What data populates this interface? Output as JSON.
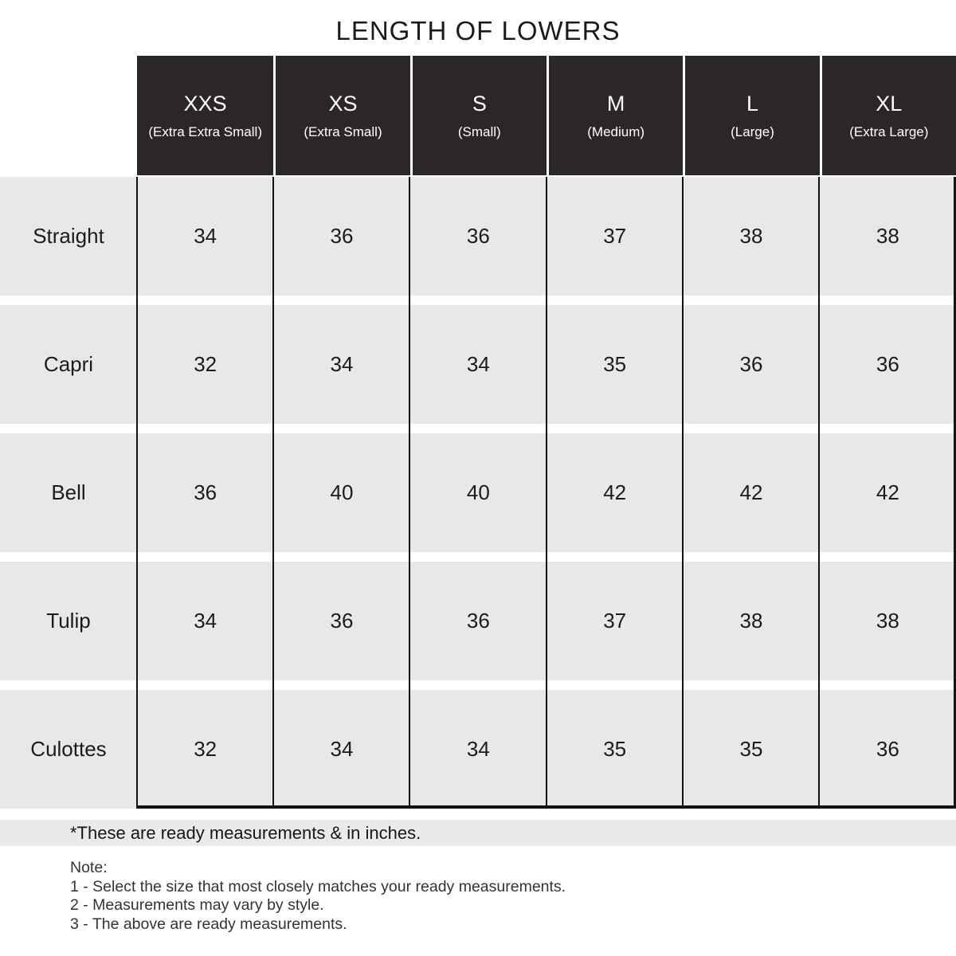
{
  "title": "LENGTH OF LOWERS",
  "table": {
    "columns": [
      {
        "size": "XXS",
        "full": "(Extra Extra Small)"
      },
      {
        "size": "XS",
        "full": "(Extra Small)"
      },
      {
        "size": "S",
        "full": "(Small)"
      },
      {
        "size": "M",
        "full": "(Medium)"
      },
      {
        "size": "L",
        "full": "(Large)"
      },
      {
        "size": "XL",
        "full": "(Extra Large)"
      }
    ],
    "rows": [
      {
        "label": "Straight",
        "values": [
          "34",
          "36",
          "36",
          "37",
          "38",
          "38"
        ]
      },
      {
        "label": "Capri",
        "values": [
          "32",
          "34",
          "34",
          "35",
          "36",
          "36"
        ]
      },
      {
        "label": "Bell",
        "values": [
          "36",
          "40",
          "40",
          "42",
          "42",
          "42"
        ]
      },
      {
        "label": "Tulip",
        "values": [
          "34",
          "36",
          "36",
          "37",
          "38",
          "38"
        ]
      },
      {
        "label": "Culottes",
        "values": [
          "32",
          "34",
          "34",
          "35",
          "35",
          "36"
        ]
      }
    ]
  },
  "footnote": "*These are ready measurements & in inches.",
  "notes": {
    "heading": "Note:",
    "items": [
      "1 - Select the size that most closely matches your ready measurements.",
      "2 - Measurements may vary by style.",
      "3 - The above are ready measurements."
    ]
  },
  "colors": {
    "header_bg": "#2b2728",
    "row_bg": "#e9e8e8",
    "footnote_band_bg": "#ebeaea",
    "grid_line": "#141414",
    "header_text": "#ffffff",
    "body_text": "#1b1b1b"
  },
  "chart_data": {
    "type": "table",
    "title": "LENGTH OF LOWERS",
    "units": "inches",
    "columns": [
      "",
      "XXS (Extra Extra Small)",
      "XS (Extra Small)",
      "S (Small)",
      "M (Medium)",
      "L (Large)",
      "XL (Extra Large)"
    ],
    "rows": [
      [
        "Straight",
        34,
        36,
        36,
        37,
        38,
        38
      ],
      [
        "Capri",
        32,
        34,
        34,
        35,
        36,
        36
      ],
      [
        "Bell",
        36,
        40,
        40,
        42,
        42,
        42
      ],
      [
        "Tulip",
        34,
        36,
        36,
        37,
        38,
        38
      ],
      [
        "Culottes",
        32,
        34,
        34,
        35,
        35,
        36
      ]
    ]
  }
}
